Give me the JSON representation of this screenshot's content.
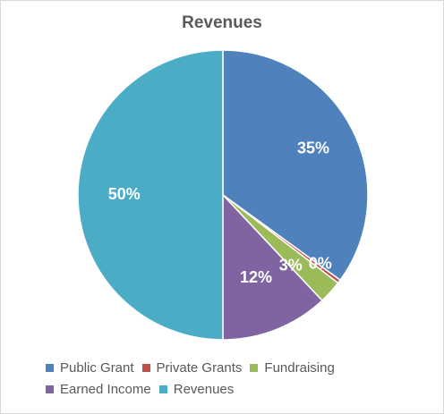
{
  "chart_data": {
    "type": "pie",
    "title": "Revenues",
    "categories": [
      "Public Grant",
      "Private Grants",
      "Fundraising",
      "Earned Income",
      "Revenues"
    ],
    "values": [
      35,
      0.4,
      2.6,
      12,
      50
    ],
    "data_labels": [
      "35%",
      "0%",
      "3%",
      "12%",
      "50%"
    ],
    "colors": [
      "#4f81bd",
      "#c0504d",
      "#9bbb59",
      "#8064a2",
      "#4bacc6"
    ],
    "legend_position": "bottom",
    "label_color": "#ffffff"
  }
}
